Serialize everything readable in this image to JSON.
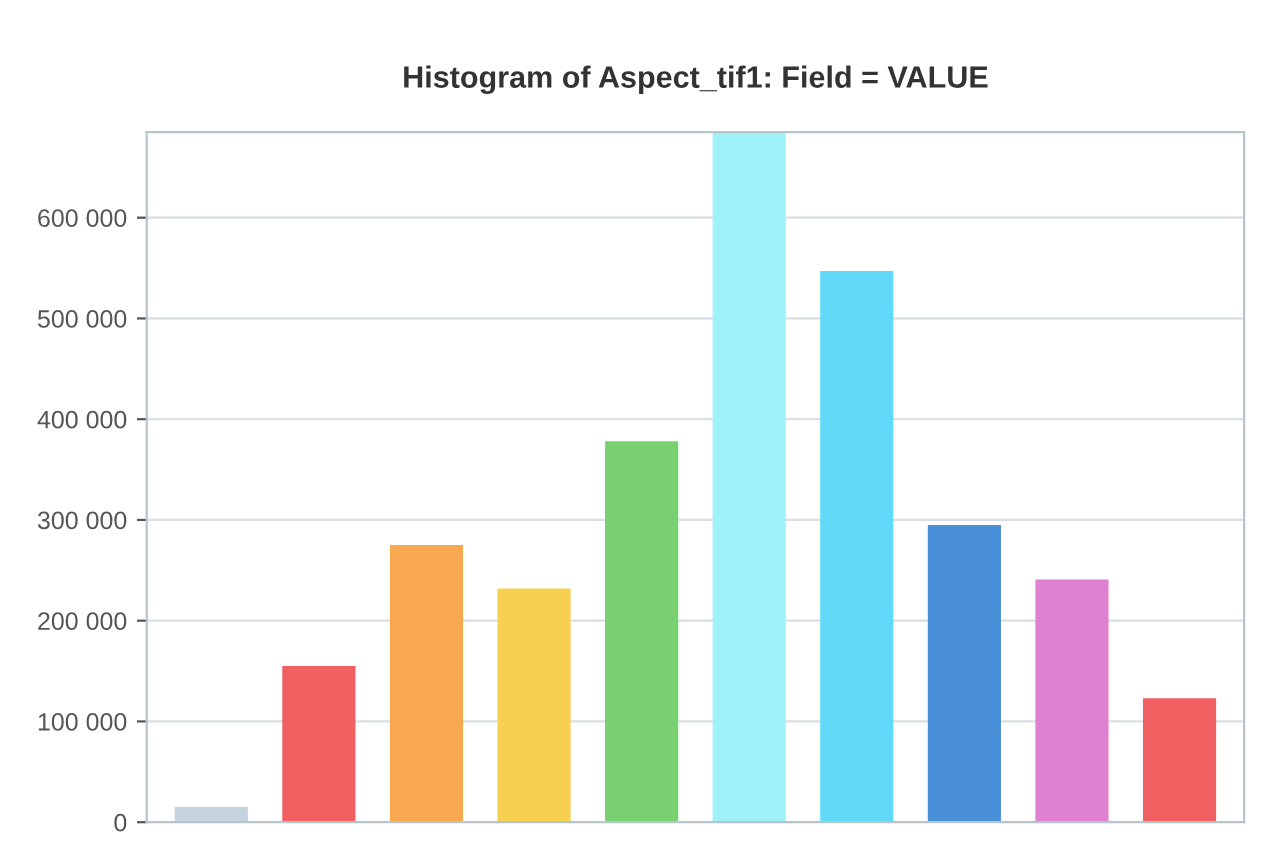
{
  "chart_data": {
    "type": "bar",
    "title": "Histogram of Aspect_tif1: Field = VALUE",
    "categories": [
      null,
      null,
      null,
      null,
      null,
      null,
      null,
      null,
      null,
      null
    ],
    "values": [
      15000,
      155000,
      275000,
      232000,
      378000,
      685000,
      547000,
      295000,
      241000,
      123000
    ],
    "colors": [
      "#c4d4de",
      "#f06060",
      "#f8a850",
      "#f8d050",
      "#78d070",
      "#9ef2f8",
      "#60daf8",
      "#4a90d8",
      "#e080d0",
      "#f06060"
    ],
    "ylim": [
      0,
      685000
    ],
    "yticks": [
      {
        "value": 0,
        "label": "0"
      },
      {
        "value": 100000,
        "label": "100 000"
      },
      {
        "value": 200000,
        "label": "200 000"
      },
      {
        "value": 300000,
        "label": "300 000"
      },
      {
        "value": 400000,
        "label": "400 000"
      },
      {
        "value": 500000,
        "label": "500 000"
      },
      {
        "value": 600000,
        "label": "600 000"
      }
    ],
    "grid": "y"
  }
}
